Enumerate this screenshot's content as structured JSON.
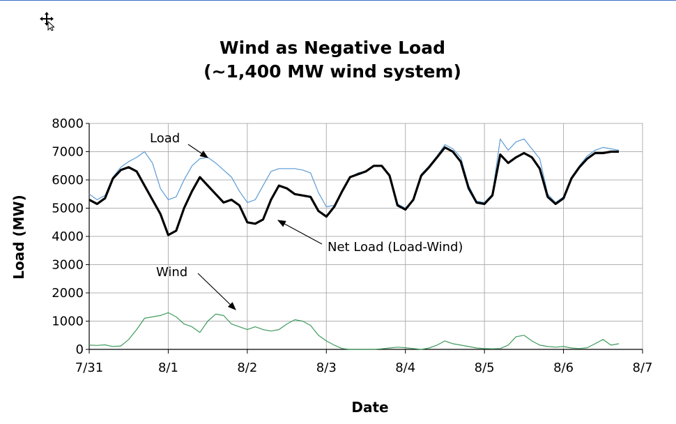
{
  "chart_data": {
    "type": "line",
    "title": "Wind as Negative Load",
    "subtitle": "(~1,400 MW wind system)",
    "xlabel": "Date",
    "ylabel": "Load (MW)",
    "x_ticks": [
      "7/31",
      "8/1",
      "8/2",
      "8/3",
      "8/4",
      "8/5",
      "8/6",
      "8/7"
    ],
    "xlim": [
      0,
      7
    ],
    "ylim": [
      0,
      8000
    ],
    "y_ticks": [
      0,
      1000,
      2000,
      3000,
      4000,
      5000,
      6000,
      7000,
      8000
    ],
    "grid": true,
    "x_unit": "days since 7/31 00:00",
    "series": [
      {
        "name": "Load",
        "color": "#5b9bd5",
        "x": [
          0,
          0.1,
          0.2,
          0.3,
          0.4,
          0.5,
          0.6,
          0.7,
          0.8,
          0.9,
          1.0,
          1.1,
          1.2,
          1.3,
          1.4,
          1.5,
          1.6,
          1.7,
          1.8,
          1.9,
          2.0,
          2.1,
          2.2,
          2.3,
          2.4,
          2.5,
          2.6,
          2.7,
          2.8,
          2.9,
          3.0,
          3.1,
          3.2,
          3.3,
          3.4,
          3.5,
          3.6,
          3.7,
          3.8,
          3.9,
          4.0,
          4.1,
          4.2,
          4.3,
          4.4,
          4.5,
          4.6,
          4.7,
          4.8,
          4.9,
          5.0,
          5.1,
          5.2,
          5.3,
          5.4,
          5.5,
          5.6,
          5.7,
          5.8,
          5.9,
          6.0,
          6.1,
          6.2,
          6.3,
          6.4,
          6.5,
          6.6,
          6.7
        ],
        "values": [
          5500,
          5300,
          5450,
          6100,
          6450,
          6650,
          6800,
          7000,
          6600,
          5700,
          5300,
          5400,
          6000,
          6500,
          6750,
          6800,
          6600,
          6350,
          6100,
          5600,
          5200,
          5300,
          5800,
          6300,
          6400,
          6400,
          6400,
          6350,
          6250,
          5550,
          5050,
          5100,
          5600,
          6100,
          6250,
          6300,
          6500,
          6500,
          6200,
          5150,
          5000,
          5300,
          6200,
          6500,
          6850,
          7250,
          7100,
          6800,
          5800,
          5250,
          5200,
          5500,
          7450,
          7050,
          7350,
          7450,
          7100,
          6750,
          5500,
          5200,
          5400,
          6100,
          6500,
          6850,
          7050,
          7150,
          7100,
          7050
        ]
      },
      {
        "name": "Net Load (Load-Wind)",
        "color": "#000000",
        "x": [
          0,
          0.1,
          0.2,
          0.3,
          0.4,
          0.5,
          0.6,
          0.7,
          0.8,
          0.9,
          1.0,
          1.1,
          1.2,
          1.3,
          1.4,
          1.5,
          1.6,
          1.7,
          1.8,
          1.9,
          2.0,
          2.1,
          2.2,
          2.3,
          2.4,
          2.5,
          2.6,
          2.7,
          2.8,
          2.9,
          3.0,
          3.1,
          3.2,
          3.3,
          3.4,
          3.5,
          3.6,
          3.7,
          3.8,
          3.9,
          4.0,
          4.1,
          4.2,
          4.3,
          4.4,
          4.5,
          4.6,
          4.7,
          4.8,
          4.9,
          5.0,
          5.1,
          5.2,
          5.3,
          5.4,
          5.5,
          5.6,
          5.7,
          5.8,
          5.9,
          6.0,
          6.1,
          6.2,
          6.3,
          6.4,
          6.5,
          6.6,
          6.7
        ],
        "values": [
          5300,
          5150,
          5350,
          6050,
          6350,
          6450,
          6300,
          5800,
          5300,
          4800,
          4050,
          4200,
          5000,
          5600,
          6100,
          5800,
          5500,
          5200,
          5300,
          5100,
          4500,
          4450,
          4600,
          5300,
          5800,
          5700,
          5500,
          5450,
          5400,
          4900,
          4700,
          5050,
          5600,
          6100,
          6200,
          6300,
          6500,
          6500,
          6150,
          5100,
          4950,
          5300,
          6150,
          6450,
          6800,
          7150,
          7000,
          6650,
          5700,
          5200,
          5150,
          5450,
          6900,
          6600,
          6800,
          6950,
          6800,
          6400,
          5400,
          5150,
          5350,
          6050,
          6450,
          6750,
          6950,
          6950,
          7000,
          7000
        ]
      },
      {
        "name": "Wind",
        "color": "#3d9a5c",
        "x": [
          0,
          0.1,
          0.2,
          0.3,
          0.4,
          0.5,
          0.6,
          0.7,
          0.8,
          0.9,
          1.0,
          1.1,
          1.2,
          1.3,
          1.4,
          1.5,
          1.6,
          1.7,
          1.8,
          1.9,
          2.0,
          2.1,
          2.2,
          2.3,
          2.4,
          2.5,
          2.6,
          2.7,
          2.8,
          2.9,
          3.0,
          3.1,
          3.2,
          3.3,
          3.4,
          3.5,
          3.6,
          3.7,
          3.8,
          3.9,
          4.0,
          4.1,
          4.2,
          4.3,
          4.4,
          4.5,
          4.6,
          4.7,
          4.8,
          4.9,
          5.0,
          5.1,
          5.2,
          5.3,
          5.4,
          5.5,
          5.6,
          5.7,
          5.8,
          5.9,
          6.0,
          6.1,
          6.2,
          6.3,
          6.4,
          6.5,
          6.6,
          6.7
        ],
        "values": [
          150,
          140,
          160,
          100,
          120,
          350,
          700,
          1100,
          1150,
          1200,
          1300,
          1150,
          900,
          800,
          600,
          1000,
          1250,
          1200,
          900,
          800,
          700,
          800,
          700,
          650,
          700,
          900,
          1050,
          1000,
          850,
          500,
          300,
          150,
          30,
          0,
          0,
          0,
          0,
          20,
          50,
          80,
          60,
          30,
          0,
          50,
          150,
          300,
          200,
          150,
          100,
          50,
          30,
          20,
          30,
          150,
          450,
          500,
          300,
          150,
          100,
          80,
          100,
          50,
          30,
          60,
          200,
          350,
          150,
          200
        ]
      }
    ],
    "annotations": [
      {
        "text": "Load",
        "target_series": "Load"
      },
      {
        "text": "Net Load (Load-Wind)",
        "target_series": "Net Load (Load-Wind)"
      },
      {
        "text": "Wind",
        "target_series": "Wind"
      }
    ]
  }
}
